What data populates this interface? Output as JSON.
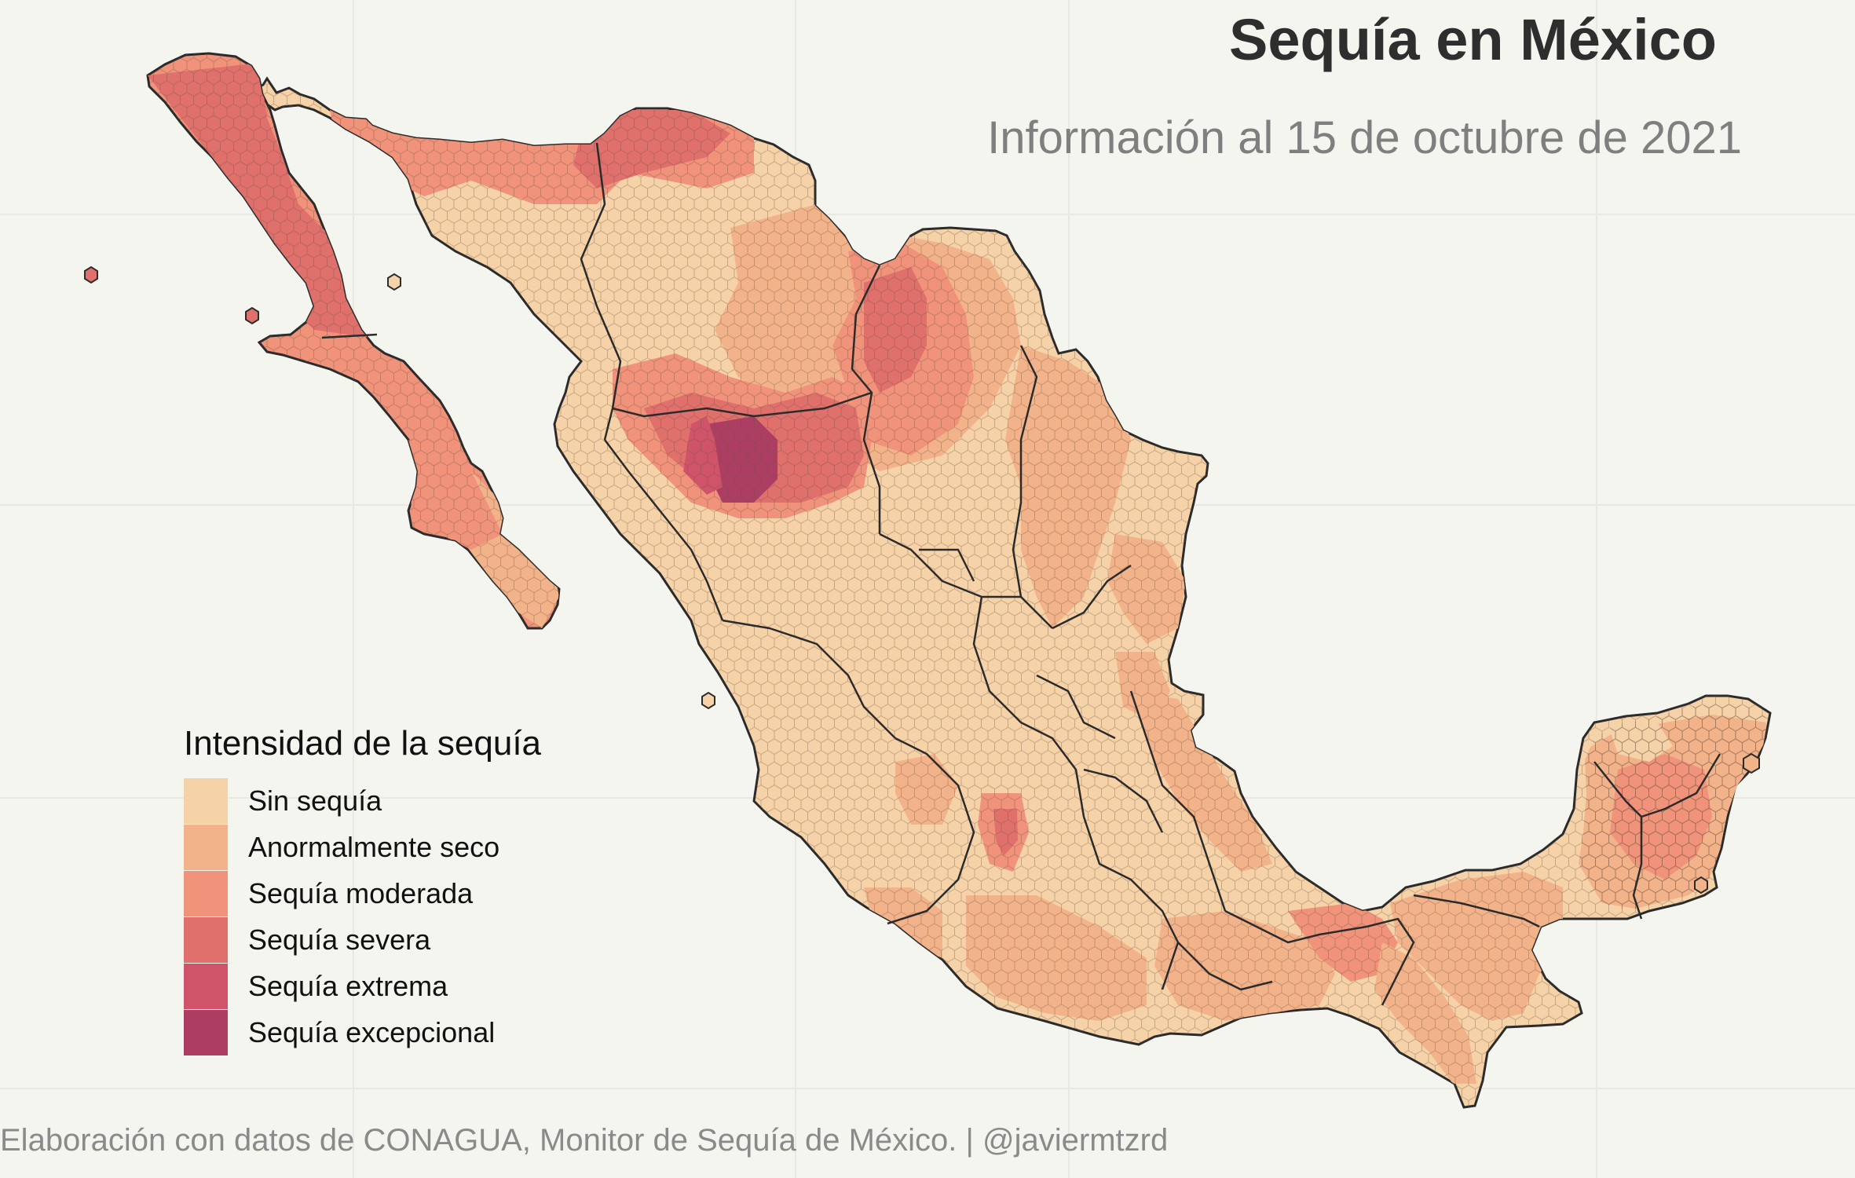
{
  "title": "Sequía en México",
  "subtitle": "Información al 15 de octubre de 2021",
  "caption": "Elaboración con datos de CONAGUA, Monitor de Sequía de México. | @javiermtzrd",
  "legend": {
    "title": "Intensidad de la sequía",
    "items": [
      {
        "label": "Sin sequía",
        "color": "#f6d2a8"
      },
      {
        "label": "Anormalmente seco",
        "color": "#f3b38a"
      },
      {
        "label": "Sequía moderada",
        "color": "#f0937a"
      },
      {
        "label": "Sequía severa",
        "color": "#e0706c"
      },
      {
        "label": "Sequía extrema",
        "color": "#cf546a"
      },
      {
        "label": "Sequía excepcional",
        "color": "#ad3e63"
      }
    ]
  },
  "map": {
    "type": "hexbin-choropleth",
    "region": "México",
    "tile_shape": "hexagon",
    "state_borders": true
  }
}
